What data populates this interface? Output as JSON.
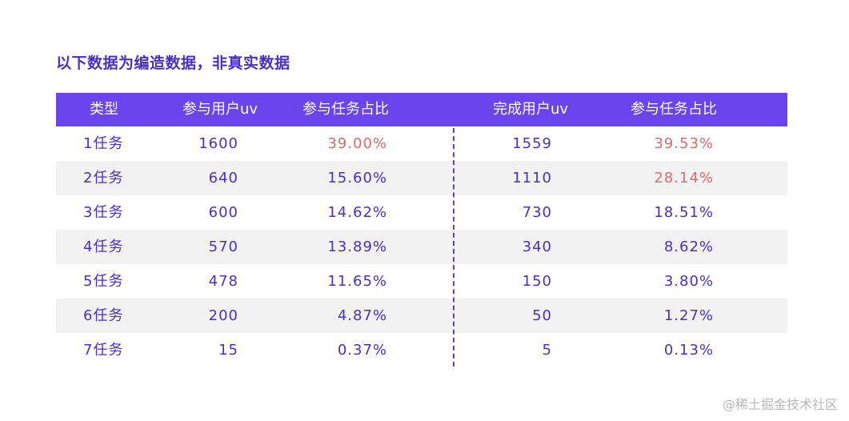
{
  "title": "以下数据为编造数据，非真实数据",
  "watermark": "@稀土掘金技术社区",
  "colors": {
    "header_bg": "#6a45ee",
    "text": "#4a2fc8",
    "highlight": "#e06a6a",
    "row_shade": "#f2f2f2"
  },
  "chart_data": {
    "type": "table",
    "columns": [
      "类型",
      "参与用户uv",
      "参与任务占比",
      "完成用户uv",
      "参与任务占比"
    ],
    "rows": [
      [
        "1任务",
        "1600",
        "39.00%",
        "1559",
        "39.53%"
      ],
      [
        "2任务",
        "640",
        "15.60%",
        "1110",
        "28.14%"
      ],
      [
        "3任务",
        "600",
        "14.62%",
        "730",
        "18.51%"
      ],
      [
        "4任务",
        "570",
        "13.89%",
        "340",
        "8.62%"
      ],
      [
        "5任务",
        "478",
        "11.65%",
        "150",
        "3.80%"
      ],
      [
        "6任务",
        "200",
        "4.87%",
        "50",
        "1.27%"
      ],
      [
        "7任务",
        "15",
        "0.37%",
        "5",
        "0.13%"
      ]
    ],
    "highlighted": [
      [
        0,
        2
      ],
      [
        0,
        4
      ],
      [
        1,
        4
      ]
    ]
  }
}
